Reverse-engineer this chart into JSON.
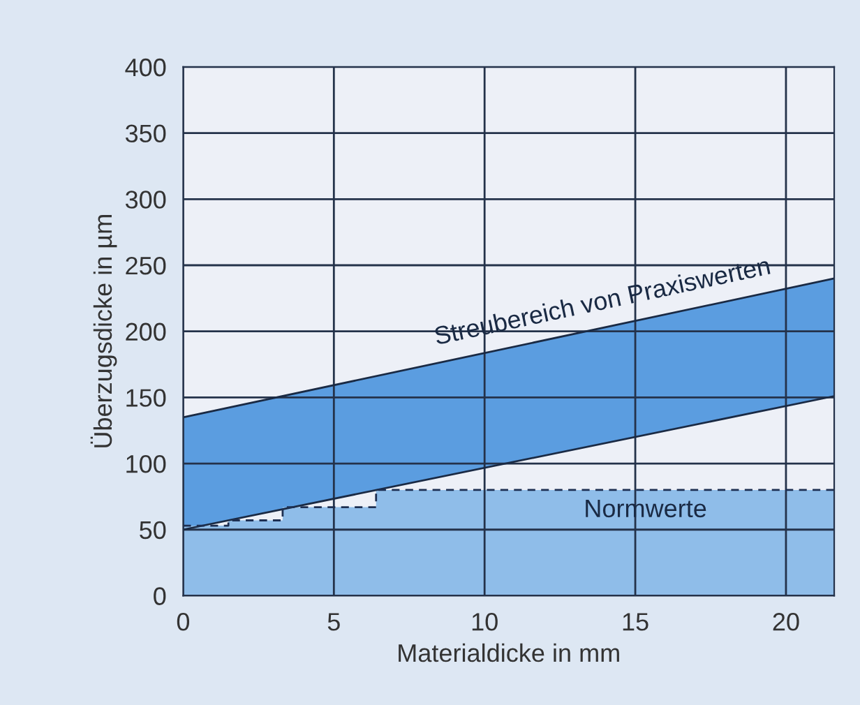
{
  "chart_data": {
    "type": "line",
    "xlabel": "Materialdicke in mm",
    "ylabel": "Überzugsdicke in µm",
    "series": [
      {
        "x": [
          0,
          21.6
        ],
        "values": [
          50,
          151
        ],
        "color": "#1a2a44"
      },
      {
        "x": [
          0,
          21.6
        ],
        "values": [
          135,
          240
        ],
        "lower": [
          50,
          151
        ],
        "upper": [
          135,
          240
        ],
        "color": "#1a2a44"
      },
      {
        "type": "area",
        "x": [
          0,
          1.5,
          1.5,
          3.3,
          3.3,
          6.4,
          6.4,
          21.6
        ],
        "values": [
          53,
          53,
          57,
          57,
          67,
          67,
          80,
          80
        ],
        "color": "#8fbde9",
        "line_style": "dashed"
      }
    ],
    "annotations": [
      {
        "text": "Streubereich von Praxiswerten",
        "x": 14,
        "y": 207
      },
      "Normwerte"
    ],
    "xlim": [
      0,
      21.6
    ],
    "ylim": [
      0,
      400
    ],
    "xticks": [
      0,
      5,
      10,
      15,
      20
    ],
    "yticks": [
      0,
      50,
      100,
      150,
      200,
      250,
      300,
      350,
      400
    ],
    "grid": true
  }
}
